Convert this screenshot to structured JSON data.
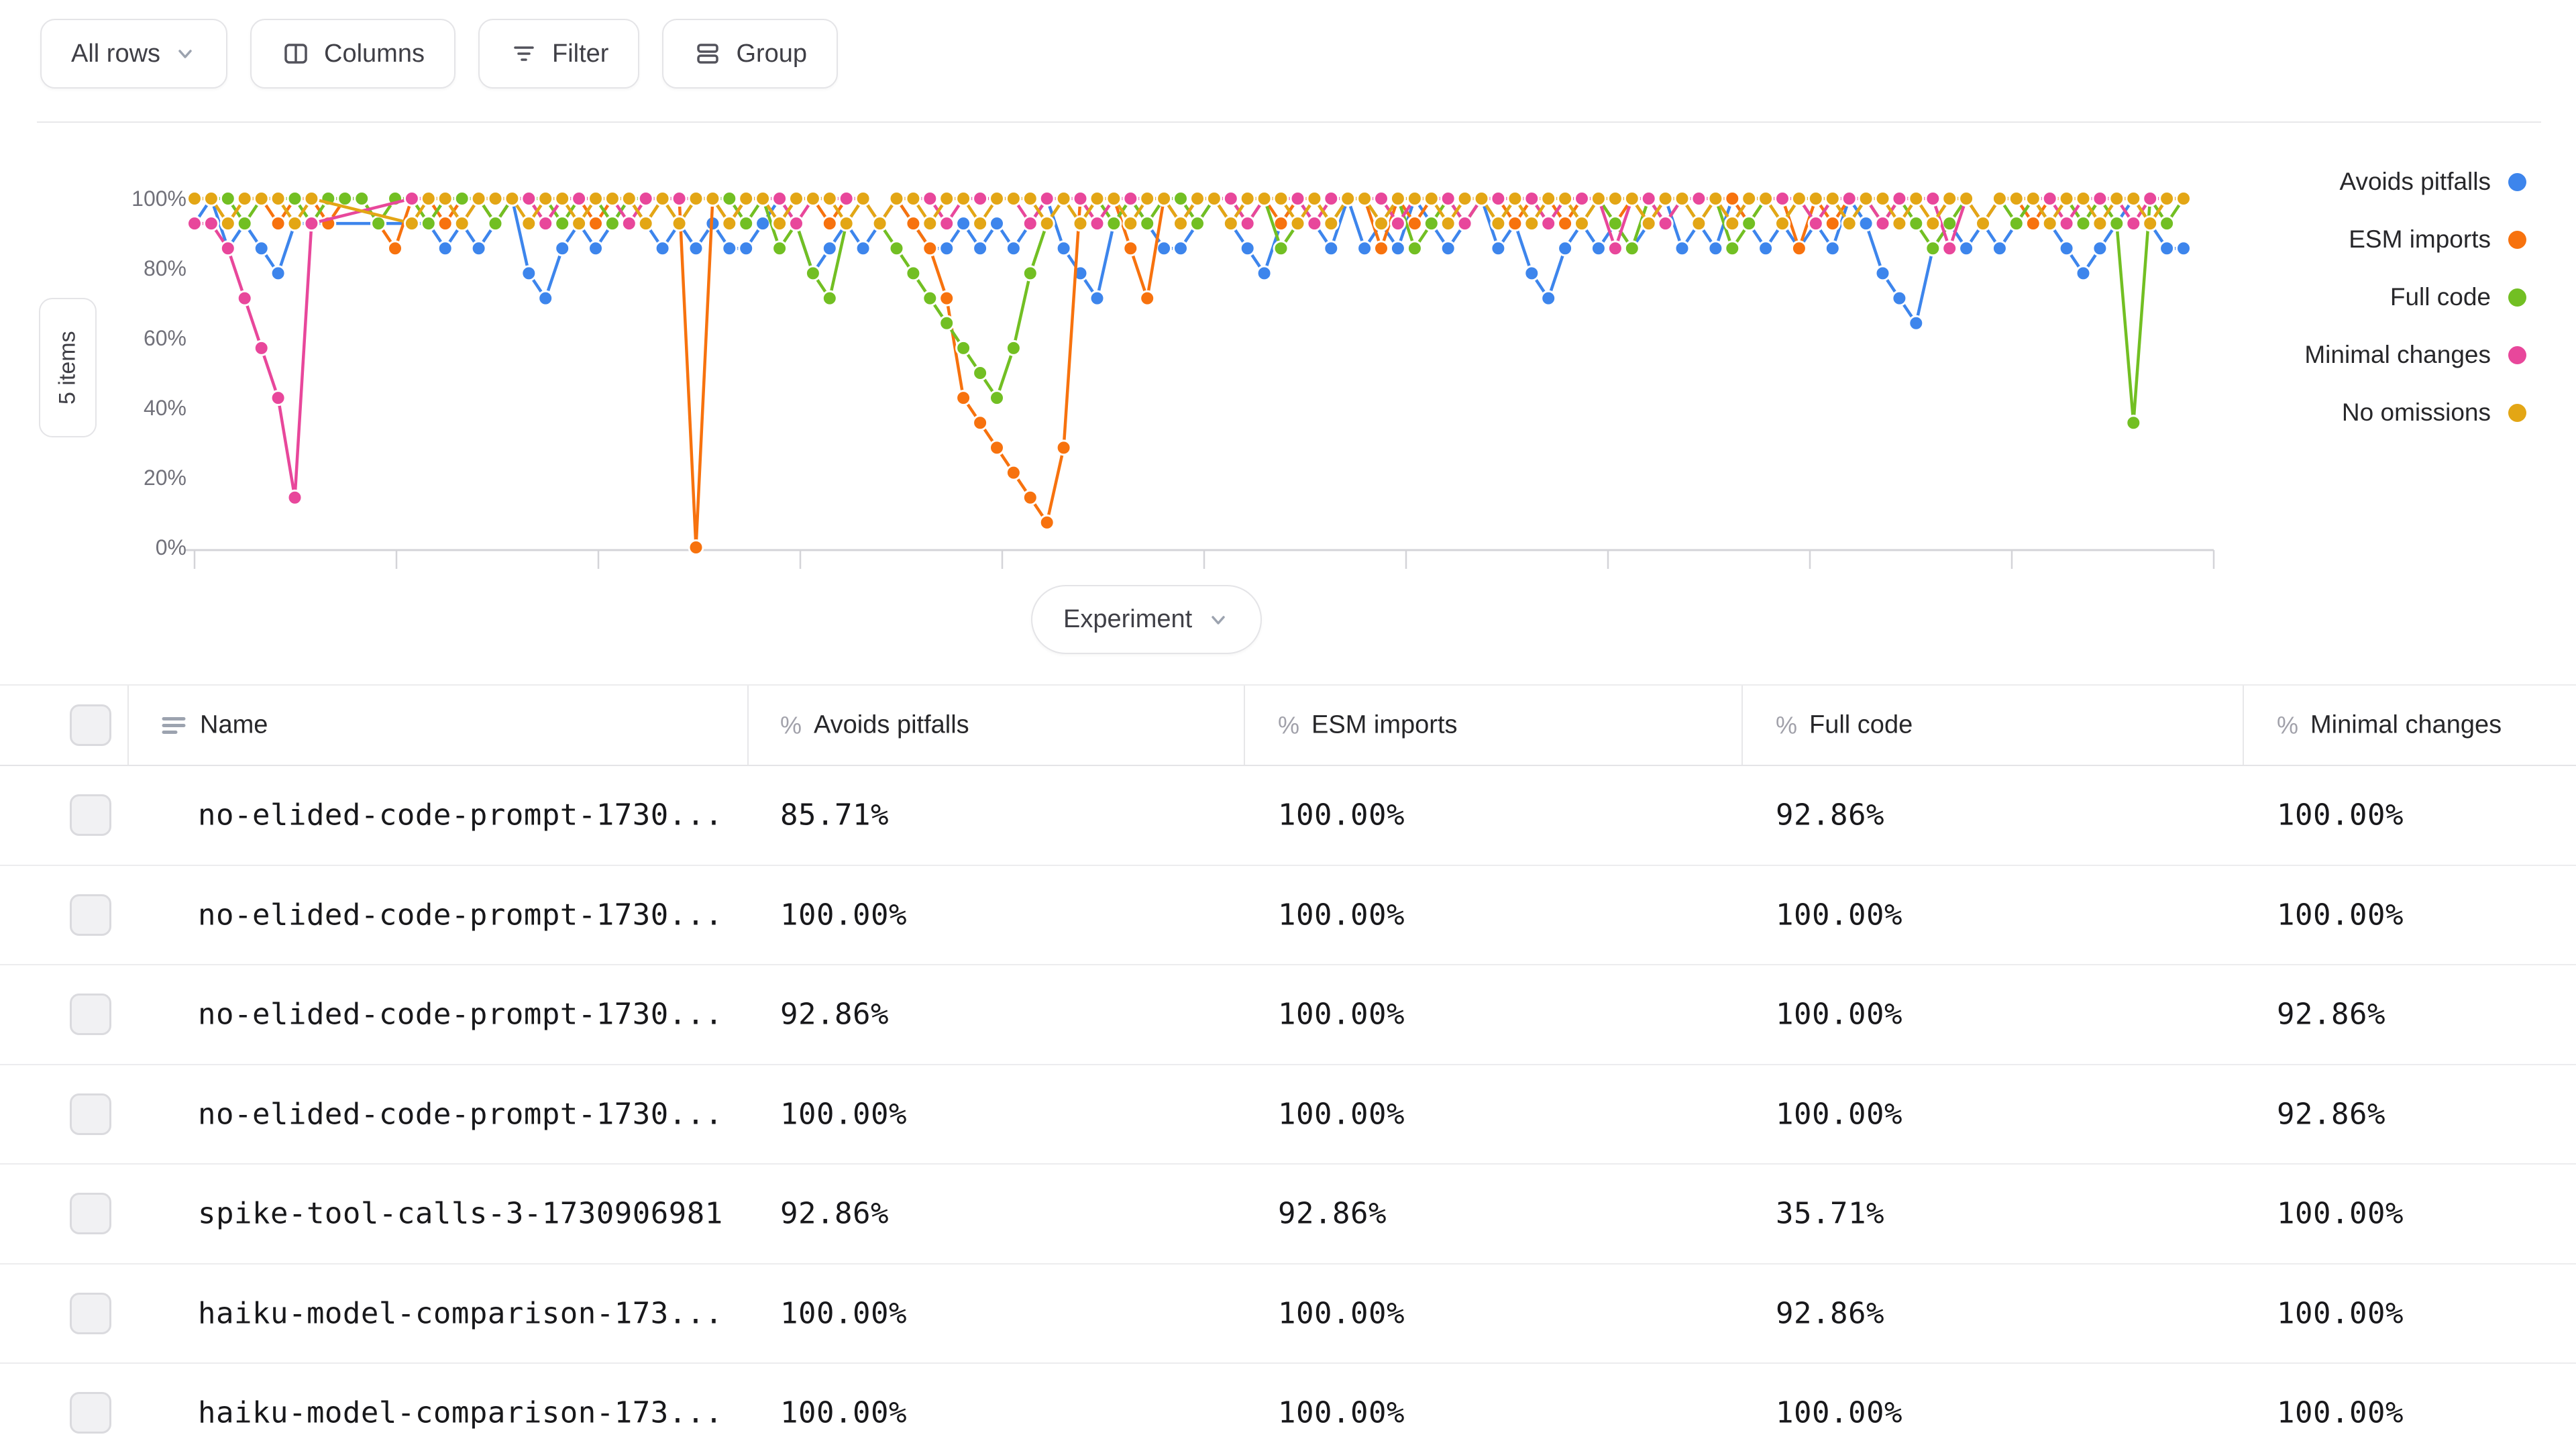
{
  "toolbar": {
    "all_rows_label": "All rows",
    "columns_label": "Columns",
    "filter_label": "Filter",
    "group_label": "Group"
  },
  "items_badge": "5 items",
  "x_axis_button": "Experiment",
  "chart_data": {
    "type": "line",
    "x_axis_label": "Experiment",
    "y_ticks": [
      "0%",
      "20%",
      "40%",
      "60%",
      "80%",
      "100%"
    ],
    "ylim": [
      0,
      100
    ],
    "legend_position": "right",
    "grid": false,
    "series": [
      {
        "name": "Avoids pitfalls",
        "color": "#3d85ec",
        "values": [
          92.86,
          100,
          85.71,
          92.86,
          85.71,
          78.57,
          92.86,
          92.86,
          null,
          null,
          null,
          null,
          null,
          92.86,
          92.86,
          85.71,
          92.86,
          85.71,
          92.86,
          100,
          78.57,
          71.43,
          85.71,
          92.86,
          85.71,
          92.86,
          100,
          92.86,
          85.71,
          92.86,
          85.71,
          92.86,
          85.71,
          85.71,
          92.86,
          100,
          92.86,
          78.57,
          85.71,
          92.86,
          85.71,
          92.86,
          100,
          92.86,
          85.71,
          85.71,
          92.86,
          85.71,
          92.86,
          85.71,
          92.86,
          100,
          85.71,
          78.57,
          71.43,
          92.86,
          100,
          92.86,
          85.71,
          85.71,
          92.86,
          100,
          92.86,
          85.71,
          78.57,
          92.86,
          100,
          92.86,
          85.71,
          100,
          85.71,
          92.86,
          85.71,
          100,
          92.86,
          85.71,
          92.86,
          100,
          85.71,
          92.86,
          78.57,
          71.43,
          85.71,
          92.86,
          85.71,
          92.86,
          85.71,
          92.86,
          100,
          85.71,
          92.86,
          85.71,
          100,
          92.86,
          85.71,
          92.86,
          85.71,
          92.86,
          85.71,
          100,
          92.86,
          78.57,
          71.43,
          64.29,
          85.71,
          92.86,
          85.71,
          92.86,
          85.71,
          92.86,
          100,
          92.86,
          85.71,
          78.57,
          85.71,
          92.86,
          100,
          92.86,
          85.71,
          85.71
        ]
      },
      {
        "name": "ESM imports",
        "color": "#f7720e",
        "values": [
          100,
          100,
          92.86,
          100,
          100,
          92.86,
          100,
          100,
          92.86,
          100,
          100,
          92.86,
          85.71,
          100,
          100,
          92.86,
          100,
          100,
          92.86,
          100,
          100,
          92.86,
          100,
          100,
          92.86,
          100,
          100,
          92.86,
          100,
          100,
          0,
          100,
          92.86,
          100,
          100,
          92.86,
          100,
          100,
          92.86,
          100,
          100,
          92.86,
          100,
          92.86,
          85.71,
          71.43,
          42.86,
          35.71,
          28.57,
          21.43,
          14.29,
          7.14,
          28.57,
          100,
          92.86,
          100,
          85.71,
          71.43,
          100,
          92.86,
          100,
          100,
          92.86,
          100,
          100,
          92.86,
          100,
          100,
          92.86,
          100,
          100,
          85.71,
          100,
          92.86,
          100,
          100,
          92.86,
          100,
          100,
          92.86,
          100,
          100,
          92.86,
          100,
          100,
          92.86,
          100,
          92.86,
          100,
          100,
          92.86,
          100,
          100,
          92.86,
          100,
          100,
          85.71,
          100,
          92.86,
          100,
          100,
          92.86,
          100,
          100,
          92.86,
          100,
          100,
          92.86,
          100,
          100,
          92.86,
          100,
          100,
          92.86,
          100,
          100,
          100,
          92.86,
          100,
          100
        ]
      },
      {
        "name": "Full code",
        "color": "#72bf23",
        "values": [
          100,
          100,
          100,
          92.86,
          100,
          100,
          100,
          92.86,
          100,
          100,
          100,
          92.86,
          100,
          100,
          92.86,
          100,
          100,
          100,
          92.86,
          100,
          100,
          100,
          92.86,
          100,
          100,
          92.86,
          100,
          100,
          100,
          92.86,
          100,
          100,
          100,
          92.86,
          100,
          85.71,
          92.86,
          78.57,
          71.43,
          92.86,
          100,
          92.86,
          85.71,
          78.57,
          71.43,
          64.29,
          57.14,
          50,
          42.86,
          57.14,
          78.57,
          92.86,
          100,
          92.86,
          100,
          92.86,
          100,
          92.86,
          100,
          100,
          92.86,
          100,
          100,
          92.86,
          100,
          85.71,
          92.86,
          100,
          92.86,
          100,
          100,
          92.86,
          100,
          85.71,
          92.86,
          100,
          92.86,
          100,
          92.86,
          100,
          100,
          92.86,
          100,
          92.86,
          100,
          92.86,
          85.71,
          100,
          92.86,
          100,
          92.86,
          100,
          85.71,
          92.86,
          100,
          92.86,
          100,
          92.86,
          100,
          92.86,
          100,
          92.86,
          100,
          92.86,
          85.71,
          92.86,
          100,
          92.86,
          100,
          92.86,
          100,
          92.86,
          100,
          92.86,
          100,
          92.86,
          35.71,
          100,
          92.86,
          100
        ]
      },
      {
        "name": "Minimal changes",
        "color": "#e8479b",
        "values": [
          92.86,
          92.86,
          85.71,
          71.43,
          57.14,
          42.86,
          14.29,
          92.86,
          null,
          null,
          null,
          null,
          null,
          100,
          100,
          100,
          92.86,
          100,
          100,
          100,
          100,
          92.86,
          100,
          100,
          100,
          100,
          92.86,
          100,
          100,
          100,
          100,
          100,
          92.86,
          100,
          100,
          100,
          92.86,
          100,
          100,
          100,
          100,
          92.86,
          100,
          100,
          100,
          92.86,
          100,
          100,
          100,
          100,
          92.86,
          100,
          100,
          100,
          92.86,
          100,
          100,
          100,
          100,
          92.86,
          100,
          100,
          100,
          92.86,
          100,
          100,
          100,
          92.86,
          100,
          100,
          100,
          100,
          92.86,
          100,
          100,
          100,
          92.86,
          100,
          100,
          100,
          100,
          92.86,
          100,
          100,
          100,
          85.71,
          100,
          100,
          92.86,
          100,
          100,
          100,
          92.86,
          100,
          100,
          100,
          100,
          92.86,
          100,
          100,
          100,
          92.86,
          100,
          100,
          100,
          85.71,
          100,
          92.86,
          100,
          100,
          100,
          100,
          92.86,
          100,
          100,
          100,
          92.86,
          100,
          100,
          100
        ]
      },
      {
        "name": "No omissions",
        "color": "#e3a615",
        "values": [
          100,
          100,
          92.86,
          100,
          100,
          100,
          92.86,
          100,
          null,
          null,
          null,
          null,
          null,
          92.86,
          100,
          100,
          92.86,
          100,
          100,
          100,
          92.86,
          100,
          100,
          92.86,
          100,
          100,
          100,
          92.86,
          100,
          92.86,
          100,
          100,
          92.86,
          100,
          100,
          92.86,
          100,
          100,
          100,
          92.86,
          100,
          92.86,
          100,
          100,
          92.86,
          100,
          100,
          92.86,
          100,
          100,
          100,
          92.86,
          100,
          92.86,
          100,
          100,
          92.86,
          100,
          100,
          92.86,
          100,
          100,
          92.86,
          100,
          100,
          100,
          92.86,
          100,
          92.86,
          100,
          100,
          92.86,
          100,
          100,
          100,
          92.86,
          100,
          100,
          92.86,
          100,
          92.86,
          100,
          100,
          92.86,
          100,
          100,
          100,
          92.86,
          100,
          100,
          92.86,
          100,
          92.86,
          100,
          100,
          92.86,
          100,
          100,
          100,
          92.86,
          100,
          100,
          92.86,
          100,
          92.86,
          100,
          100,
          92.86,
          100,
          100,
          100,
          92.86,
          100,
          100,
          92.86,
          100,
          100,
          92.86,
          100,
          100
        ]
      }
    ]
  },
  "table": {
    "columns": [
      {
        "label": "Name",
        "type": "text"
      },
      {
        "label": "Avoids pitfalls",
        "type": "percent"
      },
      {
        "label": "ESM imports",
        "type": "percent"
      },
      {
        "label": "Full code",
        "type": "percent"
      },
      {
        "label": "Minimal changes",
        "type": "percent"
      }
    ],
    "rows": [
      {
        "name": "no-elided-code-prompt-1730...",
        "values": [
          "85.71%",
          "100.00%",
          "92.86%",
          "100.00%"
        ]
      },
      {
        "name": "no-elided-code-prompt-1730...",
        "values": [
          "100.00%",
          "100.00%",
          "100.00%",
          "100.00%"
        ]
      },
      {
        "name": "no-elided-code-prompt-1730...",
        "values": [
          "92.86%",
          "100.00%",
          "100.00%",
          "92.86%"
        ]
      },
      {
        "name": "no-elided-code-prompt-1730...",
        "values": [
          "100.00%",
          "100.00%",
          "100.00%",
          "92.86%"
        ]
      },
      {
        "name": "spike-tool-calls-3-1730906981",
        "values": [
          "92.86%",
          "92.86%",
          "35.71%",
          "100.00%"
        ]
      },
      {
        "name": "haiku-model-comparison-173...",
        "values": [
          "100.00%",
          "100.00%",
          "92.86%",
          "100.00%"
        ]
      },
      {
        "name": "haiku-model-comparison-173...",
        "values": [
          "100.00%",
          "100.00%",
          "100.00%",
          "100.00%"
        ]
      }
    ]
  }
}
